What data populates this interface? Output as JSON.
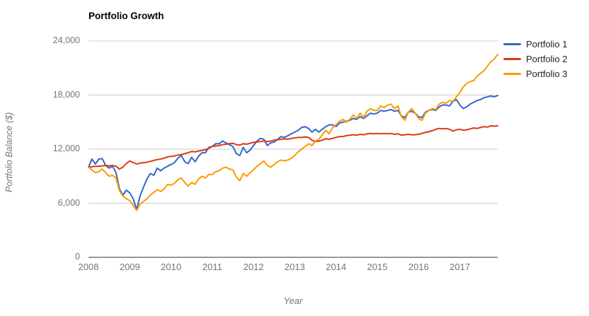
{
  "title": "Portfolio Growth",
  "chart_data": {
    "type": "line",
    "title": "Portfolio Growth",
    "xlabel": "Year",
    "ylabel": "Portfolio Balance ($)",
    "x_unit": "month",
    "x_start": "Jan 2008",
    "x_end": "Dec 2017",
    "ylim": [
      0,
      24000
    ],
    "grid": true,
    "legend_position": "right",
    "gridline_color": "#cccccc",
    "axis_line_color": "#333333",
    "tick_text_color": "#757575",
    "y_ticks": [
      {
        "value": 0,
        "label": "0"
      },
      {
        "value": 6000,
        "label": "6,000"
      },
      {
        "value": 12000,
        "label": "12,000"
      },
      {
        "value": 18000,
        "label": "18,000"
      },
      {
        "value": 24000,
        "label": "24,000"
      }
    ],
    "x_ticks": [
      {
        "year": 2008,
        "label": "2008"
      },
      {
        "year": 2009,
        "label": "2009"
      },
      {
        "year": 2010,
        "label": "2010"
      },
      {
        "year": 2011,
        "label": "2011"
      },
      {
        "year": 2012,
        "label": "2012"
      },
      {
        "year": 2013,
        "label": "2013"
      },
      {
        "year": 2014,
        "label": "2014"
      },
      {
        "year": 2015,
        "label": "2015"
      },
      {
        "year": 2016,
        "label": "2016"
      },
      {
        "year": 2017,
        "label": "2017"
      }
    ],
    "series": [
      {
        "name": "Portfolio 1",
        "color": "#3366CC",
        "values": [
          10000,
          10900,
          10350,
          10900,
          10950,
          10200,
          9900,
          10100,
          9400,
          7600,
          6900,
          7450,
          7150,
          6500,
          5300,
          6800,
          7800,
          8700,
          9300,
          9100,
          9900,
          9600,
          9900,
          10100,
          10300,
          10500,
          11000,
          11300,
          10600,
          10400,
          11100,
          10600,
          11200,
          11600,
          11600,
          12200,
          12300,
          12600,
          12600,
          12900,
          12700,
          12500,
          12300,
          11500,
          11300,
          12200,
          11600,
          11900,
          12400,
          12900,
          13200,
          13100,
          12400,
          12700,
          12800,
          13100,
          13400,
          13300,
          13500,
          13700,
          13900,
          14100,
          14400,
          14500,
          14300,
          13900,
          14200,
          13900,
          14200,
          14500,
          14700,
          14700,
          14500,
          14900,
          15000,
          15100,
          15200,
          15400,
          15300,
          15600,
          15400,
          15700,
          16000,
          15900,
          16000,
          16300,
          16200,
          16300,
          16400,
          16200,
          16300,
          15700,
          15500,
          16100,
          16200,
          16000,
          15600,
          15500,
          16100,
          16300,
          16400,
          16300,
          16700,
          16900,
          16900,
          16800,
          17300,
          17500,
          16900,
          16500,
          16700,
          17000,
          17200,
          17400,
          17500,
          17700,
          17800,
          17900,
          17800,
          17950
        ]
      },
      {
        "name": "Portfolio 2",
        "color": "#DC3912",
        "values": [
          10000,
          10050,
          10100,
          10100,
          10150,
          10200,
          10150,
          10200,
          10100,
          9800,
          10000,
          10400,
          10700,
          10500,
          10350,
          10450,
          10500,
          10550,
          10650,
          10750,
          10850,
          10900,
          11000,
          11150,
          11200,
          11250,
          11350,
          11400,
          11500,
          11600,
          11750,
          11700,
          11800,
          11850,
          11950,
          12100,
          12300,
          12350,
          12400,
          12500,
          12550,
          12600,
          12650,
          12500,
          12450,
          12600,
          12550,
          12650,
          12750,
          12800,
          12850,
          12900,
          12850,
          12900,
          13000,
          13050,
          13100,
          13150,
          13100,
          13200,
          13250,
          13300,
          13300,
          13350,
          13300,
          13000,
          12850,
          12900,
          13000,
          13150,
          13100,
          13200,
          13300,
          13400,
          13400,
          13500,
          13550,
          13600,
          13550,
          13650,
          13600,
          13700,
          13750,
          13700,
          13750,
          13700,
          13750,
          13700,
          13750,
          13650,
          13700,
          13550,
          13600,
          13650,
          13600,
          13600,
          13650,
          13750,
          13850,
          13950,
          14050,
          14200,
          14300,
          14250,
          14300,
          14200,
          14000,
          14150,
          14200,
          14100,
          14150,
          14250,
          14350,
          14300,
          14400,
          14500,
          14450,
          14600,
          14550,
          14600
        ]
      },
      {
        "name": "Portfolio 3",
        "color": "#FF9900",
        "values": [
          10000,
          9700,
          9400,
          9500,
          9800,
          9400,
          9000,
          9100,
          8800,
          7400,
          6800,
          6500,
          6300,
          5800,
          5200,
          5900,
          6200,
          6500,
          6900,
          7200,
          7500,
          7300,
          7600,
          8100,
          8000,
          8200,
          8600,
          8800,
          8300,
          7900,
          8300,
          8100,
          8700,
          9000,
          8800,
          9200,
          9200,
          9500,
          9600,
          9900,
          10000,
          9800,
          9700,
          8900,
          8500,
          9300,
          9000,
          9400,
          9700,
          10100,
          10400,
          10700,
          10200,
          10000,
          10300,
          10600,
          10800,
          10700,
          10800,
          11000,
          11300,
          11700,
          12000,
          12300,
          12600,
          12400,
          12900,
          13100,
          13600,
          14100,
          13700,
          14400,
          14700,
          15100,
          15300,
          15000,
          15300,
          15800,
          15400,
          16000,
          15500,
          16200,
          16500,
          16300,
          16300,
          16800,
          16600,
          16900,
          17000,
          16500,
          16800,
          15600,
          15200,
          16100,
          16500,
          16000,
          15400,
          15200,
          16000,
          16300,
          16500,
          16400,
          17000,
          17200,
          17100,
          17400,
          17300,
          17800,
          18300,
          18900,
          19300,
          19500,
          19600,
          20100,
          20400,
          20700,
          21200,
          21700,
          22000,
          22500
        ]
      }
    ]
  }
}
